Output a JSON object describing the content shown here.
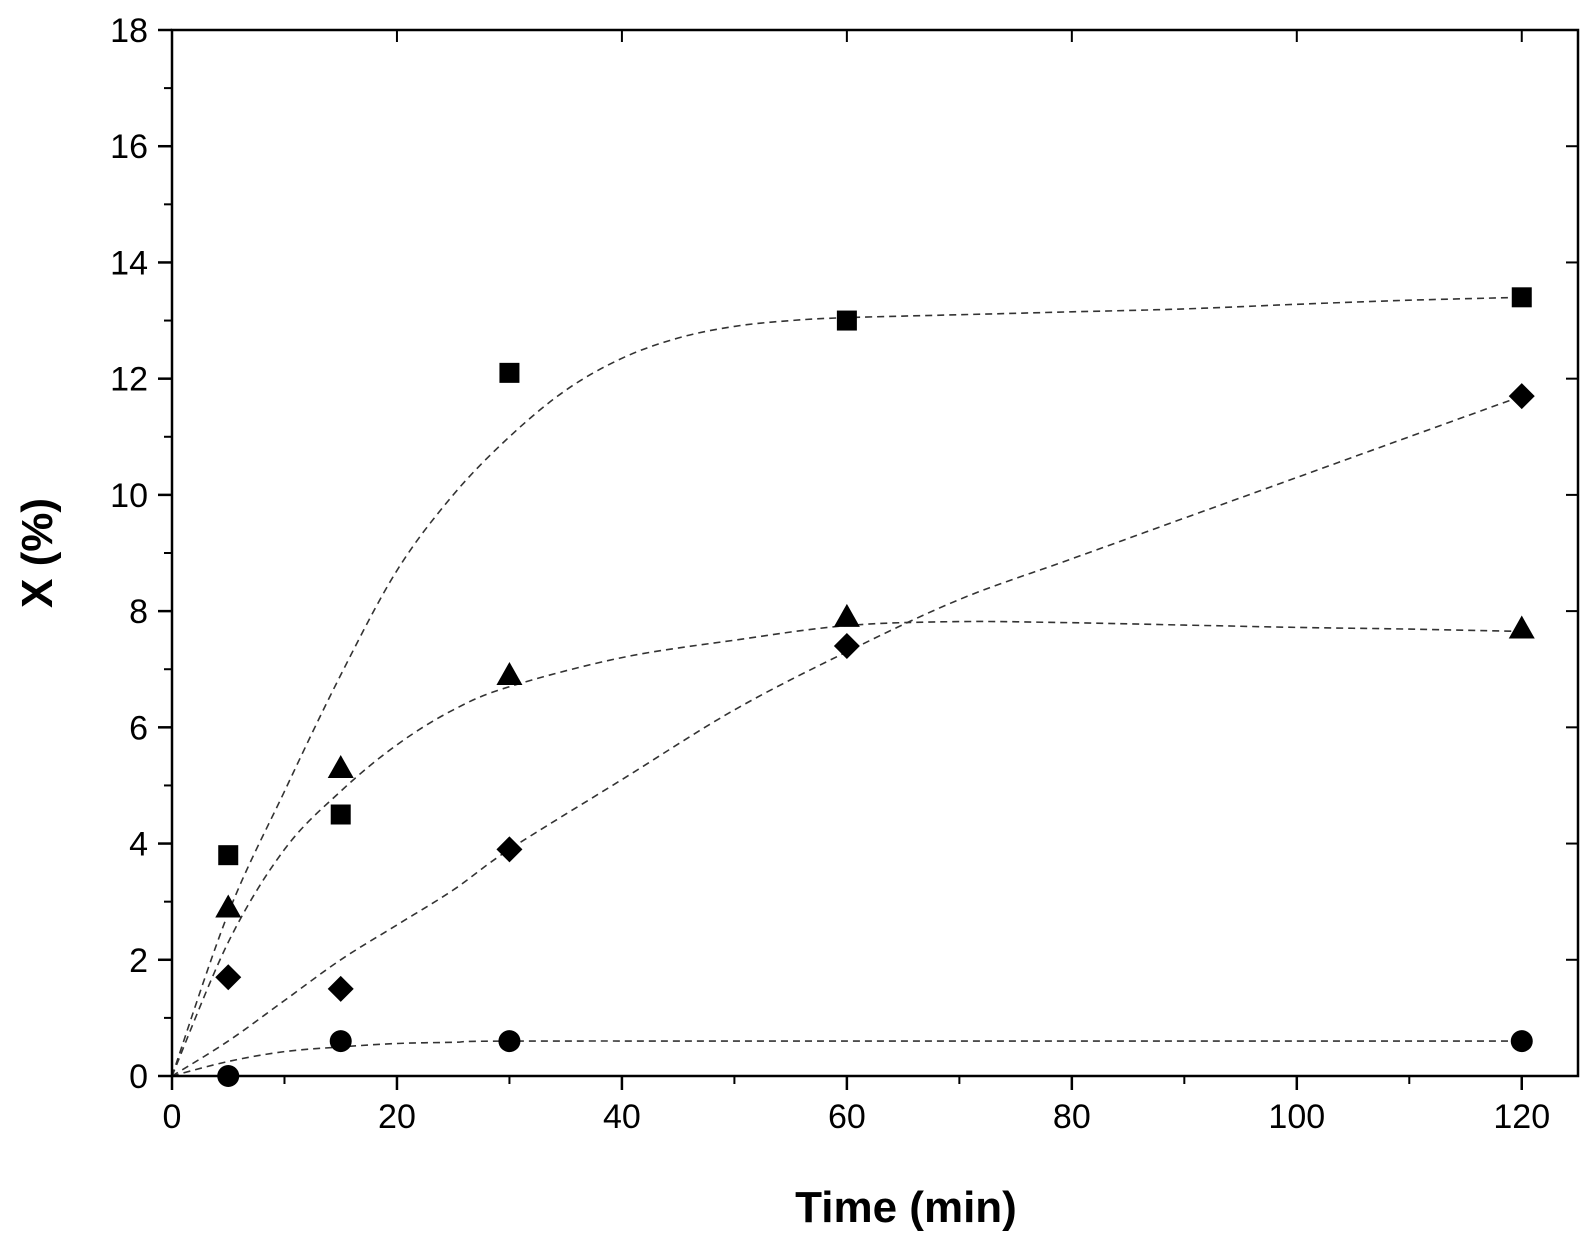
{
  "chart_data": {
    "type": "scatter",
    "title": "",
    "xlabel": "Time (min)",
    "ylabel": "X (%)",
    "xlim": [
      0,
      125
    ],
    "ylim": [
      0,
      18
    ],
    "xticks": [
      0,
      20,
      40,
      60,
      80,
      100,
      120
    ],
    "yticks": [
      0,
      2,
      4,
      6,
      8,
      10,
      12,
      14,
      16,
      18
    ],
    "grid": false,
    "legend": "none",
    "series": [
      {
        "name": "square",
        "marker": "square",
        "color": "#000000",
        "x": [
          5,
          15,
          30,
          60,
          120
        ],
        "y": [
          3.8,
          4.5,
          12.1,
          13.0,
          13.4
        ],
        "fit_line": {
          "style": "dashed",
          "x": [
            0,
            5,
            10,
            15,
            20,
            25,
            30,
            35,
            40,
            45,
            50,
            55,
            60,
            70,
            80,
            90,
            100,
            110,
            120
          ],
          "y": [
            0,
            2.8,
            4.9,
            6.9,
            8.7,
            10.0,
            11.0,
            11.8,
            12.35,
            12.7,
            12.9,
            13.0,
            13.05,
            13.1,
            13.15,
            13.2,
            13.28,
            13.35,
            13.4
          ]
        }
      },
      {
        "name": "triangle",
        "marker": "triangle",
        "color": "#000000",
        "x": [
          5,
          15,
          30,
          60,
          120
        ],
        "y": [
          2.9,
          5.3,
          6.9,
          7.9,
          7.7
        ],
        "fit_line": {
          "style": "dashed",
          "x": [
            0,
            5,
            10,
            15,
            20,
            25,
            30,
            40,
            50,
            60,
            70,
            80,
            90,
            100,
            110,
            120
          ],
          "y": [
            0,
            2.3,
            3.9,
            4.9,
            5.7,
            6.3,
            6.7,
            7.2,
            7.5,
            7.75,
            7.82,
            7.8,
            7.76,
            7.72,
            7.69,
            7.65
          ]
        }
      },
      {
        "name": "diamond",
        "marker": "diamond",
        "color": "#000000",
        "x": [
          5,
          15,
          30,
          60,
          120
        ],
        "y": [
          1.7,
          1.5,
          3.9,
          7.4,
          11.7
        ],
        "fit_line": {
          "style": "dashed",
          "x": [
            0,
            5,
            10,
            15,
            20,
            25,
            30,
            40,
            50,
            60,
            70,
            80,
            90,
            100,
            110,
            120
          ],
          "y": [
            0,
            0.6,
            1.3,
            2.0,
            2.6,
            3.2,
            3.9,
            5.1,
            6.3,
            7.3,
            8.2,
            8.9,
            9.6,
            10.3,
            11.0,
            11.7
          ]
        }
      },
      {
        "name": "circle",
        "marker": "circle",
        "color": "#000000",
        "x": [
          5,
          15,
          30,
          120
        ],
        "y": [
          0.0,
          0.6,
          0.6,
          0.6
        ],
        "fit_line": {
          "style": "dashed",
          "x": [
            0,
            5,
            10,
            15,
            20,
            25,
            30,
            60,
            90,
            120
          ],
          "y": [
            0,
            0.25,
            0.42,
            0.5,
            0.56,
            0.58,
            0.6,
            0.6,
            0.6,
            0.6
          ]
        }
      }
    ]
  }
}
